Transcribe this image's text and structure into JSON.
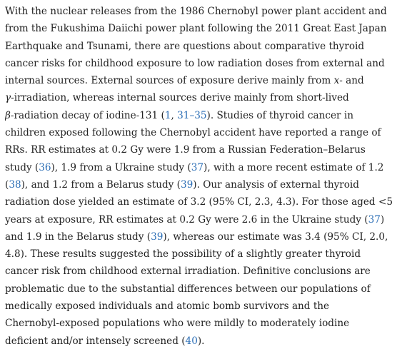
{
  "paragraph": {
    "lines": [
      [
        "With the nuclear releases from the 1986 Chernobyl power plant accident and"
      ],
      [
        "from the Fukushima Daiichi power plant following the 2011 Great East Japan"
      ],
      [
        "Earthquake and Tsunami, there are questions about comparative thyroid"
      ],
      [
        "cancer risks for childhood exposure to low radiation doses from external and"
      ],
      [
        "internal sources. External sources of exposure derive mainly from ",
        {
          "text": "x",
          "italic": true
        },
        "- and"
      ],
      [
        {
          "text": "γ",
          "italic": true
        },
        "-irradiation, whereas internal sources derive mainly from short-lived"
      ],
      [
        {
          "text": "β",
          "italic": true
        },
        "-radiation decay of iodine-131 (",
        {
          "text": "1",
          "link": true
        },
        ", ",
        {
          "text": "31–35",
          "link": true
        },
        "). Studies of thyroid cancer in"
      ],
      [
        "children exposed following the Chernobyl accident have reported a range of"
      ],
      [
        "RRs. RR estimates at 0.2 Gy were 1.9 from a Russian Federation–Belarus"
      ],
      [
        "study (",
        {
          "text": "36",
          "link": true
        },
        "), 1.9 from a Ukraine study (",
        {
          "text": "37",
          "link": true
        },
        "), with a more recent estimate of 1.2"
      ],
      [
        "(",
        {
          "text": "38",
          "link": true
        },
        "), and 1.2 from a Belarus study (",
        {
          "text": "39",
          "link": true
        },
        "). Our analysis of external thyroid"
      ],
      [
        "radiation dose yielded an estimate of 3.2 (95% CI, 2.3, 4.3). For those aged <5"
      ],
      [
        "years at exposure, RR estimates at 0.2 Gy were 2.6 in the Ukraine study (",
        {
          "text": "37",
          "link": true
        },
        ")"
      ],
      [
        "and 1.9 in the Belarus study (",
        {
          "text": "39",
          "link": true
        },
        "), whereas our estimate was 3.4 (95% CI, 2.0,"
      ],
      [
        "4.8). These results suggested the possibility of a slightly greater thyroid"
      ],
      [
        "cancer risk from childhood external irradiation. Definitive conclusions are"
      ],
      [
        "problematic due to the substantial differences between our populations of"
      ],
      [
        "medically exposed individuals and atomic bomb survivors and the"
      ],
      [
        "Chernobyl-exposed populations who were mildly to moderately iodine"
      ],
      [
        "deficient and/or intensely screened (",
        {
          "text": "40",
          "link": true
        },
        ")."
      ]
    ]
  }
}
